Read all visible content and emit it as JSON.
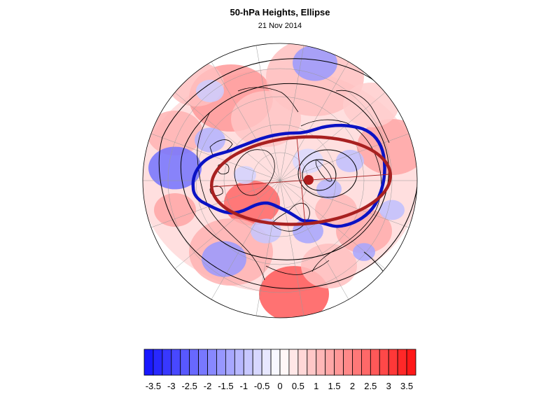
{
  "title": "50-hPa Heights, Ellipse",
  "subtitle": "21 Nov 2014",
  "colors": {
    "vortex_edge": "#0a12c4",
    "ellipse": "#a82020",
    "ellipse_center": "#b01c1c",
    "coastline": "#000000",
    "height_contour": "#000000",
    "graticule": "#9a9a9a",
    "scale_min": "#1010ff",
    "scale_mid": "#ffffff",
    "scale_max": "#ff1010"
  },
  "colorbar": {
    "min": -3.75,
    "max": 3.75,
    "labels": [
      "-3.5",
      "-3",
      "-2.5",
      "-2",
      "-1.5",
      "-1",
      "-0.5",
      "0",
      "0.5",
      "1",
      "1.5",
      "2",
      "2.5",
      "3",
      "3.5"
    ]
  }
}
